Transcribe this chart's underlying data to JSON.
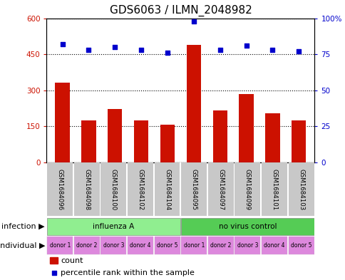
{
  "title": "GDS6063 / ILMN_2048982",
  "samples": [
    "GSM1684096",
    "GSM1684098",
    "GSM1684100",
    "GSM1684102",
    "GSM1684104",
    "GSM1684095",
    "GSM1684097",
    "GSM1684099",
    "GSM1684101",
    "GSM1684103"
  ],
  "counts": [
    330,
    175,
    220,
    175,
    155,
    490,
    215,
    285,
    205,
    175
  ],
  "percentiles": [
    82,
    78,
    80,
    78,
    76,
    98,
    78,
    81,
    78,
    77
  ],
  "infection_groups": [
    {
      "label": "influenza A",
      "start": 0,
      "end": 5,
      "color": "#90ee90"
    },
    {
      "label": "no virus control",
      "start": 5,
      "end": 10,
      "color": "#55cc55"
    }
  ],
  "individual_labels": [
    "donor 1",
    "donor 2",
    "donor 3",
    "donor 4",
    "donor 5",
    "donor 1",
    "donor 2",
    "donor 3",
    "donor 4",
    "donor 5"
  ],
  "individual_color": "#dd88dd",
  "bar_color": "#cc1100",
  "dot_color": "#0000cc",
  "ylim_left": [
    0,
    600
  ],
  "ylim_right": [
    0,
    100
  ],
  "yticks_left": [
    0,
    150,
    300,
    450,
    600
  ],
  "yticks_right": [
    0,
    25,
    50,
    75,
    100
  ],
  "yticklabels_right": [
    "0",
    "25",
    "50",
    "75",
    "100%"
  ],
  "legend_count_label": "count",
  "legend_percentile_label": "percentile rank within the sample",
  "infection_row_label": "infection",
  "individual_row_label": "individual",
  "title_fontsize": 11,
  "axis_fontsize": 7.5,
  "label_fontsize": 8,
  "tick_label_fontsize": 7,
  "background_color": "#ffffff",
  "plot_bg_color": "#ffffff",
  "sample_bg_color": "#c8c8c8"
}
